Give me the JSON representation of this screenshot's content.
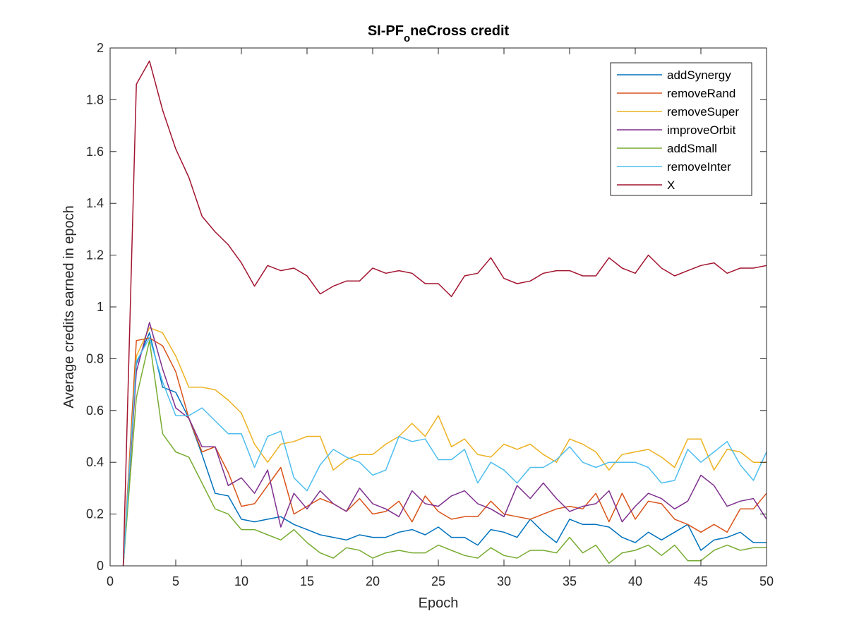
{
  "chart_data": {
    "type": "line",
    "title_main": "SI-PF",
    "title_sub": "o",
    "title_rest": "neCross credit",
    "xlabel": "Epoch",
    "ylabel": "Average credits earned in epoch",
    "xlim": [
      0,
      50
    ],
    "ylim": [
      0,
      2
    ],
    "xticks": [
      0,
      5,
      10,
      15,
      20,
      25,
      30,
      35,
      40,
      45,
      50
    ],
    "yticks": [
      0,
      0.2,
      0.4,
      0.6,
      0.8,
      1,
      1.2,
      1.4,
      1.6,
      1.8,
      2
    ],
    "xtick_labels": [
      "0",
      "5",
      "10",
      "15",
      "20",
      "25",
      "30",
      "35",
      "40",
      "45",
      "50"
    ],
    "ytick_labels": [
      "0",
      "0.2",
      "0.4",
      "0.6",
      "0.8",
      "1",
      "1.2",
      "1.4",
      "1.6",
      "1.8",
      "2"
    ],
    "grid": false,
    "legend_position": "top-right",
    "x": [
      1,
      2,
      3,
      4,
      5,
      6,
      7,
      8,
      9,
      10,
      11,
      12,
      13,
      14,
      15,
      16,
      17,
      18,
      19,
      20,
      21,
      22,
      23,
      24,
      25,
      26,
      27,
      28,
      29,
      30,
      31,
      32,
      33,
      34,
      35,
      36,
      37,
      38,
      39,
      40,
      41,
      42,
      43,
      44,
      45,
      46,
      47,
      48,
      49,
      50
    ],
    "series": [
      {
        "name": "addSynergy",
        "color": "#0072BD",
        "values": [
          0,
          0.78,
          0.9,
          0.69,
          0.67,
          0.57,
          0.43,
          0.28,
          0.27,
          0.18,
          0.17,
          0.18,
          0.19,
          0.16,
          0.14,
          0.12,
          0.11,
          0.1,
          0.12,
          0.11,
          0.11,
          0.13,
          0.14,
          0.12,
          0.15,
          0.11,
          0.11,
          0.08,
          0.14,
          0.13,
          0.11,
          0.18,
          0.13,
          0.09,
          0.18,
          0.16,
          0.16,
          0.15,
          0.11,
          0.09,
          0.13,
          0.1,
          0.13,
          0.16,
          0.06,
          0.1,
          0.11,
          0.13,
          0.09,
          0.09
        ]
      },
      {
        "name": "removeRand",
        "color": "#D95319",
        "values": [
          0,
          0.87,
          0.88,
          0.85,
          0.75,
          0.57,
          0.44,
          0.46,
          0.36,
          0.23,
          0.24,
          0.31,
          0.38,
          0.2,
          0.23,
          0.26,
          0.24,
          0.21,
          0.26,
          0.2,
          0.21,
          0.25,
          0.17,
          0.27,
          0.21,
          0.18,
          0.19,
          0.19,
          0.25,
          0.2,
          0.19,
          0.18,
          0.2,
          0.22,
          0.23,
          0.22,
          0.28,
          0.17,
          0.28,
          0.18,
          0.25,
          0.24,
          0.18,
          0.16,
          0.13,
          0.16,
          0.13,
          0.22,
          0.22,
          0.28
        ]
      },
      {
        "name": "removeSuper",
        "color": "#EDB120",
        "values": [
          0,
          0.81,
          0.92,
          0.9,
          0.81,
          0.69,
          0.69,
          0.68,
          0.64,
          0.59,
          0.47,
          0.4,
          0.47,
          0.48,
          0.5,
          0.5,
          0.37,
          0.41,
          0.43,
          0.43,
          0.47,
          0.5,
          0.55,
          0.5,
          0.58,
          0.46,
          0.49,
          0.43,
          0.42,
          0.47,
          0.45,
          0.47,
          0.43,
          0.4,
          0.49,
          0.47,
          0.44,
          0.37,
          0.43,
          0.44,
          0.45,
          0.42,
          0.38,
          0.49,
          0.49,
          0.37,
          0.45,
          0.44,
          0.4,
          0.4
        ]
      },
      {
        "name": "improveOrbit",
        "color": "#7E2F8E",
        "values": [
          0,
          0.75,
          0.94,
          0.76,
          0.61,
          0.57,
          0.46,
          0.46,
          0.31,
          0.34,
          0.28,
          0.37,
          0.15,
          0.28,
          0.22,
          0.29,
          0.24,
          0.21,
          0.3,
          0.24,
          0.22,
          0.19,
          0.29,
          0.24,
          0.23,
          0.27,
          0.29,
          0.24,
          0.22,
          0.19,
          0.31,
          0.26,
          0.32,
          0.26,
          0.21,
          0.23,
          0.24,
          0.29,
          0.17,
          0.23,
          0.28,
          0.26,
          0.22,
          0.25,
          0.35,
          0.31,
          0.23,
          0.25,
          0.26,
          0.18
        ]
      },
      {
        "name": "addSmall",
        "color": "#77AC30",
        "values": [
          0,
          0.65,
          0.87,
          0.51,
          0.44,
          0.42,
          0.32,
          0.22,
          0.2,
          0.14,
          0.14,
          0.12,
          0.1,
          0.14,
          0.09,
          0.05,
          0.03,
          0.07,
          0.06,
          0.03,
          0.05,
          0.06,
          0.05,
          0.05,
          0.08,
          0.06,
          0.04,
          0.03,
          0.07,
          0.04,
          0.03,
          0.06,
          0.06,
          0.05,
          0.11,
          0.05,
          0.08,
          0.01,
          0.05,
          0.06,
          0.08,
          0.04,
          0.08,
          0.02,
          0.02,
          0.06,
          0.08,
          0.06,
          0.07,
          0.07
        ]
      },
      {
        "name": "removeInter",
        "color": "#4DBEEE",
        "values": [
          0,
          0.79,
          0.88,
          0.71,
          0.58,
          0.58,
          0.61,
          0.56,
          0.51,
          0.51,
          0.38,
          0.5,
          0.52,
          0.34,
          0.29,
          0.39,
          0.45,
          0.42,
          0.4,
          0.35,
          0.37,
          0.5,
          0.48,
          0.49,
          0.41,
          0.41,
          0.45,
          0.32,
          0.4,
          0.37,
          0.32,
          0.38,
          0.38,
          0.41,
          0.46,
          0.4,
          0.38,
          0.4,
          0.4,
          0.4,
          0.38,
          0.32,
          0.33,
          0.45,
          0.4,
          0.44,
          0.48,
          0.39,
          0.33,
          0.44
        ]
      },
      {
        "name": "X",
        "color": "#A2142F",
        "values": [
          0,
          1.86,
          1.95,
          1.76,
          1.61,
          1.5,
          1.35,
          1.29,
          1.24,
          1.17,
          1.08,
          1.16,
          1.14,
          1.15,
          1.12,
          1.05,
          1.08,
          1.1,
          1.1,
          1.15,
          1.13,
          1.14,
          1.13,
          1.09,
          1.09,
          1.04,
          1.12,
          1.13,
          1.19,
          1.11,
          1.09,
          1.1,
          1.13,
          1.14,
          1.14,
          1.12,
          1.12,
          1.19,
          1.15,
          1.13,
          1.2,
          1.15,
          1.12,
          1.14,
          1.16,
          1.17,
          1.13,
          1.15,
          1.15,
          1.16
        ]
      }
    ]
  }
}
